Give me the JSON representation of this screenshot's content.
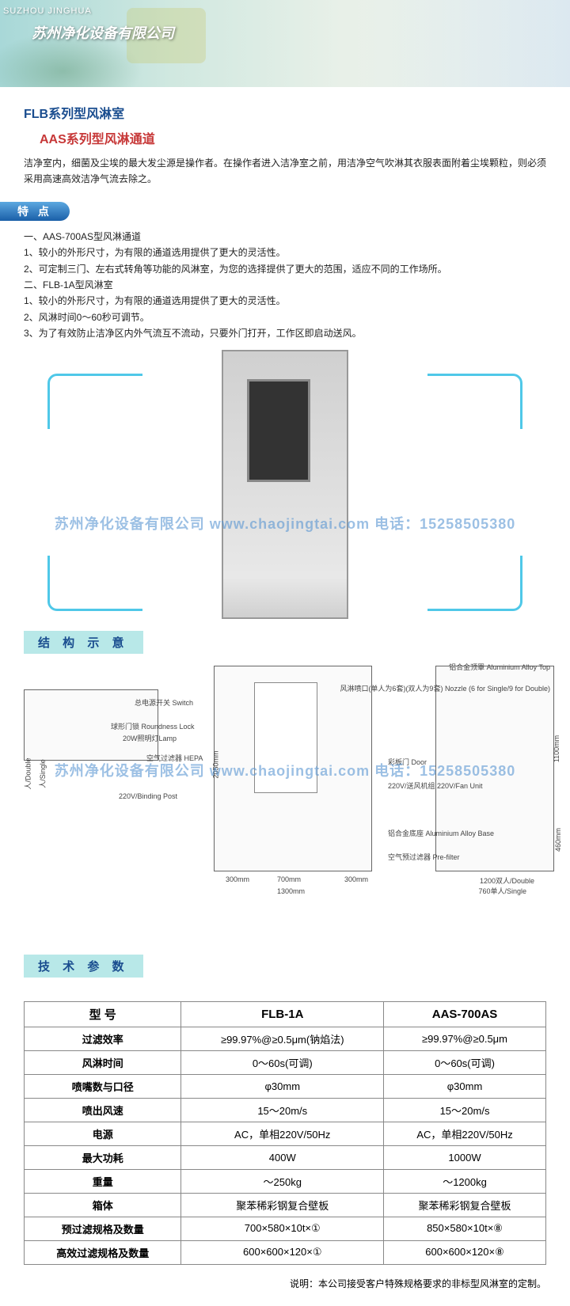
{
  "header": {
    "label_en": "SUZHOU JINGHUA",
    "company": "苏州净化设备有限公司"
  },
  "titles": {
    "t1": "FLB系列型风淋室",
    "t2": "AAS系列型风淋通道"
  },
  "intro": "洁净室内，细菌及尘埃的最大发尘源是操作者。在操作者进入洁净室之前，用洁净空气吹淋其衣服表面附着尘埃颗粒，则必须采用高速高效洁净气流去除之。",
  "badges": {
    "features": "特 点",
    "structure": "结 构 示 意",
    "specs": "技 术 参 数"
  },
  "features": [
    "一、AAS-700AS型风淋通道",
    "1、较小的外形尺寸，为有限的通道选用提供了更大的灵活性。",
    "2、可定制三门、左右式转角等功能的风淋室，为您的选择提供了更大的范围，适应不同的工作场所。",
    "二、FLB-1A型风淋室",
    "1、较小的外形尺寸，为有限的通道选用提供了更大的灵活性。",
    "2、风淋时间0～60秒可调节。",
    "3、为了有效防止洁净区内外气流互不流动，只要外门打开，工作区即启动送风。"
  ],
  "watermark": "苏州净化设备有限公司   www.chaojingtai.com   电话：15258505380",
  "diagram": {
    "labels": {
      "top": "铝合金顶罩\nAluminium Alloy Top",
      "nozzle": "风淋喷口(单人为6套)(双人为9套)\nNozzle (6 for Single/9 for Double)",
      "switch": "总电源开关 Switch",
      "lock": "球形门锁 Roundness Lock",
      "lamp": "20W照明灯Lamp",
      "hepa": "空气过滤器\nHEPA",
      "binding": "220V/Binding Post",
      "door": "彩板门 Door",
      "fan": "220V/送风机组\n220V/Fan Unit",
      "base": "铝合金底座\nAluminium Alloy Base",
      "prefilter": "空气预过滤器\nPre-filter"
    },
    "dims": {
      "h_main": "2050mm",
      "h_right": "1100mm",
      "h_base": "460mm",
      "w_300a": "300mm",
      "w_700": "700mm",
      "w_300b": "300mm",
      "w_1300": "1300mm",
      "w_double": "1200双人/Double",
      "w_single": "760单人/Single",
      "top_double": "人/Double",
      "top_single": "人/Single"
    }
  },
  "spec_table": {
    "headers": [
      "型 号",
      "FLB-1A",
      "AAS-700AS"
    ],
    "rows": [
      [
        "过滤效率",
        "≥99.97%@≥0.5μm(钠焰法)",
        "≥99.97%@≥0.5μm"
      ],
      [
        "风淋时间",
        "0～60s(可调)",
        "0～60s(可调)"
      ],
      [
        "喷嘴数与口径",
        "φ30mm",
        "φ30mm"
      ],
      [
        "喷出风速",
        "15～20m/s",
        "15～20m/s"
      ],
      [
        "电源",
        "AC，单相220V/50Hz",
        "AC，单相220V/50Hz"
      ],
      [
        "最大功耗",
        "400W",
        "1000W"
      ],
      [
        "重量",
        "～250kg",
        "～1200kg"
      ],
      [
        "箱体",
        "聚苯稀彩钢复合壁板",
        "聚苯稀彩钢复合壁板"
      ],
      [
        "预过滤规格及数量",
        "700×580×10t×①",
        "850×580×10t×⑧"
      ],
      [
        "高效过滤规格及数量",
        "600×600×120×①",
        "600×600×120×⑧"
      ]
    ],
    "note": "说明：本公司接受客户特殊规格要求的非标型风淋室的定制。"
  }
}
